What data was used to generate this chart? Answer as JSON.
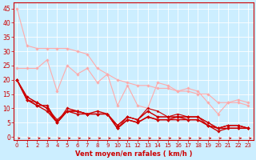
{
  "background_color": "#cceeff",
  "grid_color": "#ffffff",
  "xlabel": "Vent moyen/en rafales ( km/h )",
  "xlabel_color": "#cc0000",
  "xlabel_fontsize": 6.0,
  "xtick_fontsize": 5.0,
  "ytick_fontsize": 5.5,
  "xlim": [
    -0.3,
    23.5
  ],
  "ylim": [
    -1,
    47
  ],
  "yticks": [
    0,
    5,
    10,
    15,
    20,
    25,
    30,
    35,
    40,
    45
  ],
  "xticks": [
    0,
    1,
    2,
    3,
    4,
    5,
    6,
    7,
    8,
    9,
    10,
    11,
    12,
    13,
    14,
    15,
    16,
    17,
    18,
    19,
    20,
    21,
    22,
    23
  ],
  "series": [
    {
      "x": [
        0,
        1,
        2,
        3,
        4,
        5,
        6,
        7,
        8,
        9,
        10,
        11,
        12,
        13,
        14,
        15,
        16,
        17,
        18,
        19,
        20,
        21,
        22,
        23
      ],
      "y": [
        45,
        32,
        31,
        31,
        31,
        31,
        30,
        29,
        24,
        22,
        20,
        19,
        18,
        18,
        17,
        17,
        16,
        16,
        15,
        15,
        12,
        12,
        12,
        11
      ],
      "color": "#ffaaaa",
      "lw": 0.8,
      "marker": "D",
      "ms": 1.8
    },
    {
      "x": [
        0,
        1,
        2,
        3,
        4,
        5,
        6,
        7,
        8,
        9,
        10,
        11,
        12,
        13,
        14,
        15,
        16,
        17,
        18,
        19,
        20,
        21,
        22,
        23
      ],
      "y": [
        24,
        24,
        24,
        27,
        16,
        25,
        22,
        24,
        19,
        22,
        11,
        18,
        11,
        10,
        19,
        18,
        16,
        17,
        16,
        12,
        8,
        12,
        13,
        12
      ],
      "color": "#ffaaaa",
      "lw": 0.8,
      "marker": "D",
      "ms": 1.8
    },
    {
      "x": [
        0,
        1,
        2,
        3,
        4,
        5,
        6,
        7,
        8,
        9,
        10,
        11,
        12,
        13,
        14,
        15,
        16,
        17,
        18,
        19,
        20,
        21,
        22,
        23
      ],
      "y": [
        20,
        13,
        11,
        11,
        5,
        10,
        9,
        8,
        9,
        8,
        3,
        6,
        5,
        7,
        6,
        6,
        7,
        6,
        6,
        4,
        3,
        3,
        3,
        3
      ],
      "color": "#cc0000",
      "lw": 1.0,
      "marker": "D",
      "ms": 1.8
    },
    {
      "x": [
        0,
        1,
        2,
        3,
        4,
        5,
        6,
        7,
        8,
        9,
        10,
        11,
        12,
        13,
        14,
        15,
        16,
        17,
        18,
        19,
        20,
        21,
        22,
        23
      ],
      "y": [
        20,
        13,
        11,
        9,
        5,
        9,
        8,
        8,
        8,
        8,
        3,
        6,
        5,
        7,
        6,
        6,
        6,
        6,
        6,
        4,
        2,
        3,
        3,
        3
      ],
      "color": "#cc0000",
      "lw": 1.0,
      "marker": "D",
      "ms": 1.8
    },
    {
      "x": [
        0,
        1,
        2,
        3,
        4,
        5,
        6,
        7,
        8,
        9,
        10,
        11,
        12,
        13,
        14,
        15,
        16,
        17,
        18,
        19,
        20,
        21,
        22,
        23
      ],
      "y": [
        20,
        13,
        12,
        10,
        5,
        9,
        9,
        8,
        8,
        8,
        3,
        7,
        6,
        9,
        7,
        7,
        7,
        7,
        7,
        4,
        3,
        4,
        4,
        3
      ],
      "color": "#cc0000",
      "lw": 0.8,
      "marker": "D",
      "ms": 1.8
    },
    {
      "x": [
        0,
        1,
        2,
        3,
        4,
        5,
        6,
        7,
        8,
        9,
        10,
        11,
        12,
        13,
        14,
        15,
        16,
        17,
        18,
        19,
        20,
        21,
        22,
        23
      ],
      "y": [
        20,
        14,
        12,
        10,
        6,
        9,
        9,
        8,
        8,
        8,
        4,
        7,
        6,
        9,
        7,
        7,
        7,
        7,
        7,
        5,
        3,
        4,
        4,
        3
      ],
      "color": "#cc0000",
      "lw": 0.8,
      "marker": "D",
      "ms": 1.8
    },
    {
      "x": [
        0,
        1,
        2,
        3,
        4,
        5,
        6,
        7,
        8,
        9,
        10,
        11,
        12,
        13,
        14,
        15,
        16,
        17,
        18,
        19,
        20,
        21,
        22,
        23
      ],
      "y": [
        20,
        14,
        12,
        10,
        5,
        9,
        9,
        8,
        8,
        8,
        4,
        7,
        6,
        10,
        9,
        7,
        8,
        7,
        7,
        5,
        3,
        4,
        4,
        3
      ],
      "color": "#cc0000",
      "lw": 0.8,
      "marker": "D",
      "ms": 1.5
    }
  ]
}
